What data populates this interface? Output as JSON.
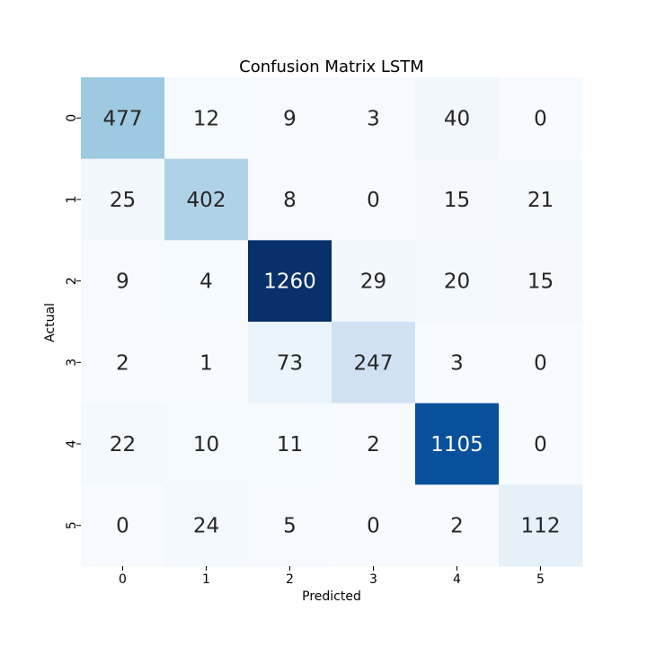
{
  "chart_data": {
    "type": "heatmap",
    "title": "Confusion Matrix LSTM",
    "xlabel": "Predicted",
    "ylabel": "Actual",
    "x_categories": [
      "0",
      "1",
      "2",
      "3",
      "4",
      "5"
    ],
    "y_categories": [
      "0",
      "1",
      "2",
      "3",
      "4",
      "5"
    ],
    "values": [
      [
        477,
        12,
        9,
        3,
        40,
        0
      ],
      [
        25,
        402,
        8,
        0,
        15,
        21
      ],
      [
        9,
        4,
        1260,
        29,
        20,
        15
      ],
      [
        2,
        1,
        73,
        247,
        3,
        0
      ],
      [
        22,
        10,
        11,
        2,
        1105,
        0
      ],
      [
        0,
        24,
        5,
        0,
        2,
        112
      ]
    ],
    "colormap": "Blues",
    "value_range": [
      0,
      1260
    ],
    "colorbar": false,
    "annotations": true
  }
}
